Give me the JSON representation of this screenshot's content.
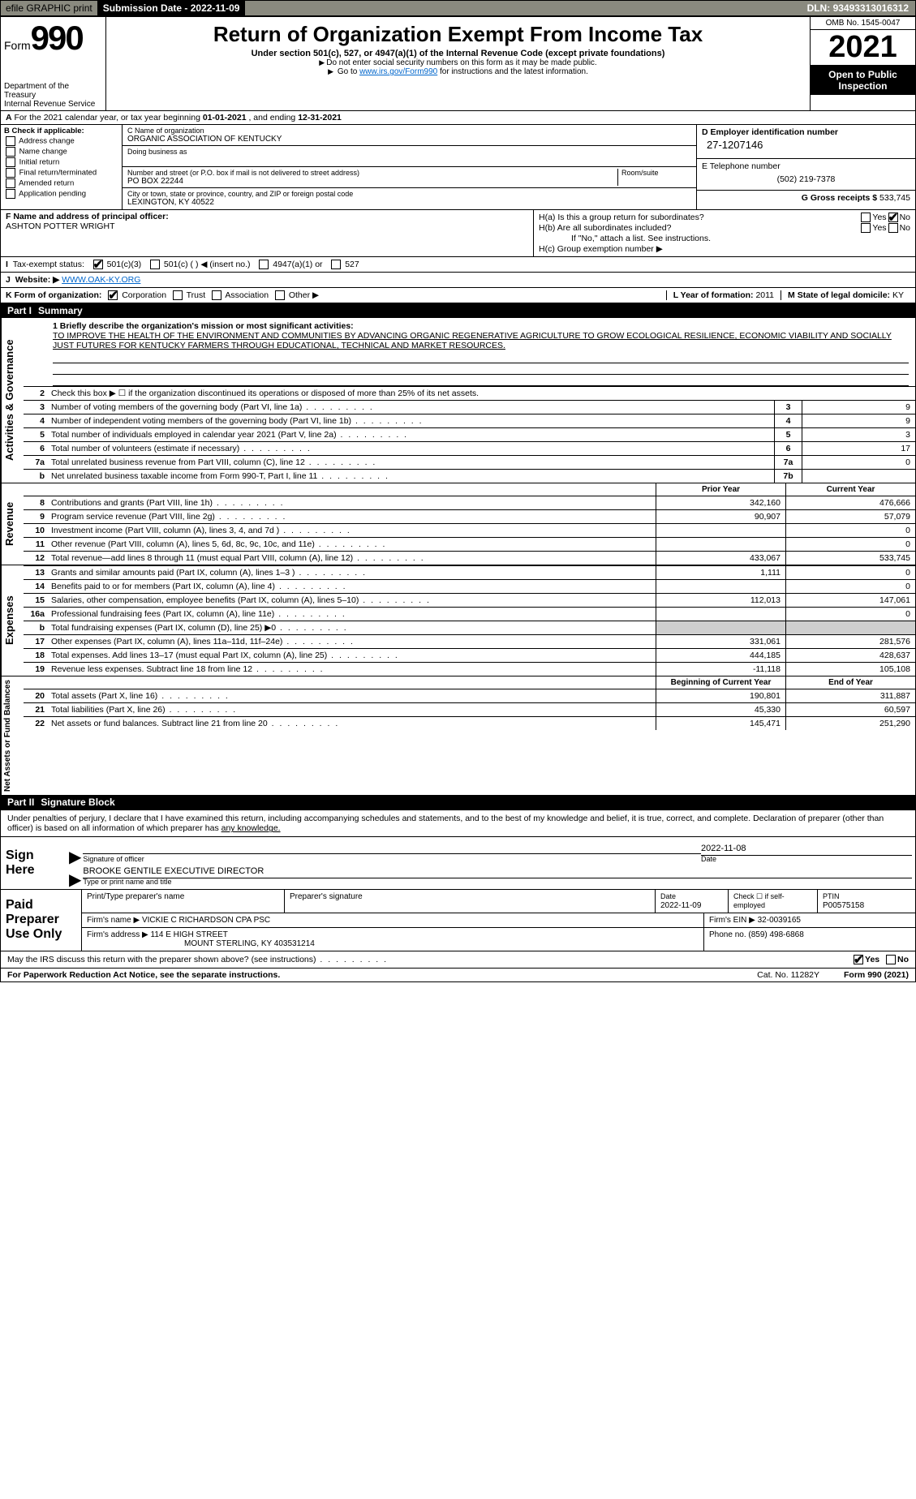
{
  "topbar": {
    "efile": "efile GRAPHIC print",
    "submission_label": "Submission Date - ",
    "submission_date": "2022-11-09",
    "dln_label": "DLN: ",
    "dln": "93493313016312"
  },
  "header": {
    "form_label": "Form",
    "form_num": "990",
    "dept": "Department of the Treasury",
    "irs": "Internal Revenue Service",
    "title": "Return of Organization Exempt From Income Tax",
    "subtitle": "Under section 501(c), 527, or 4947(a)(1) of the Internal Revenue Code (except private foundations)",
    "note1": "Do not enter social security numbers on this form as it may be made public.",
    "note2_pre": "Go to ",
    "note2_link": "www.irs.gov/Form990",
    "note2_post": " for instructions and the latest information.",
    "omb": "OMB No. 1545-0047",
    "year": "2021",
    "open": "Open to Public Inspection"
  },
  "sectionA": {
    "text_pre": "For the 2021 calendar year, or tax year beginning ",
    "begin": "01-01-2021",
    "mid": " , and ending ",
    "end": "12-31-2021"
  },
  "boxB": {
    "label": "B Check if applicable:",
    "items": [
      "Address change",
      "Name change",
      "Initial return",
      "Final return/terminated",
      "Amended return",
      "Application pending"
    ]
  },
  "boxC": {
    "name_label": "C Name of organization",
    "name": "ORGANIC ASSOCIATION OF KENTUCKY",
    "dba_label": "Doing business as",
    "dba": "",
    "street_label": "Number and street (or P.O. box if mail is not delivered to street address)",
    "room_label": "Room/suite",
    "street": "PO BOX 22244",
    "city_label": "City or town, state or province, country, and ZIP or foreign postal code",
    "city": "LEXINGTON, KY  40522"
  },
  "boxD": {
    "ein_label": "D Employer identification number",
    "ein": "27-1207146",
    "phone_label": "E Telephone number",
    "phone": "(502) 219-7378",
    "gross_label": "G Gross receipts $ ",
    "gross": "533,745"
  },
  "boxF": {
    "label": "F Name and address of principal officer:",
    "name": "ASHTON POTTER WRIGHT"
  },
  "boxH": {
    "a_label": "H(a)  Is this a group return for subordinates?",
    "b_label": "H(b)  Are all subordinates included?",
    "b_note": "If \"No,\" attach a list. See instructions.",
    "c_label": "H(c)  Group exemption number ▶",
    "yes": "Yes",
    "no": "No"
  },
  "lineI": {
    "label": "Tax-exempt status:",
    "opts": [
      "501(c)(3)",
      "501(c) (  ) ◀ (insert no.)",
      "4947(a)(1) or",
      "527"
    ]
  },
  "lineJ": {
    "label": "Website: ▶",
    "url": "WWW.OAK-KY.ORG"
  },
  "lineK": {
    "label": "K Form of organization:",
    "opts": [
      "Corporation",
      "Trust",
      "Association",
      "Other ▶"
    ],
    "year_label": "L Year of formation: ",
    "year": "2011",
    "state_label": "M State of legal domicile: ",
    "state": "KY"
  },
  "part1": {
    "title": "Part I",
    "name": "Summary",
    "side_gov": "Activities & Governance",
    "q1_label": "1  Briefly describe the organization's mission or most significant activities:",
    "q1_text": "TO IMPROVE THE HEALTH OF THE ENVIRONMENT AND COMMUNITIES BY ADVANCING ORGANIC REGENERATIVE AGRICULTURE TO GROW ECOLOGICAL RESILIENCE, ECONOMIC VIABILITY AND SOCIALLY JUST FUTURES FOR KENTUCKY FARMERS THROUGH EDUCATIONAL, TECHNICAL AND MARKET RESOURCES.",
    "q2": "Check this box ▶ ☐  if the organization discontinued its operations or disposed of more than 25% of its net assets.",
    "rows_gov": [
      {
        "n": "3",
        "t": "Number of voting members of the governing body (Part VI, line 1a)",
        "box": "3",
        "v": "9"
      },
      {
        "n": "4",
        "t": "Number of independent voting members of the governing body (Part VI, line 1b)",
        "box": "4",
        "v": "9"
      },
      {
        "n": "5",
        "t": "Total number of individuals employed in calendar year 2021 (Part V, line 2a)",
        "box": "5",
        "v": "3"
      },
      {
        "n": "6",
        "t": "Total number of volunteers (estimate if necessary)",
        "box": "6",
        "v": "17"
      },
      {
        "n": "7a",
        "t": "Total unrelated business revenue from Part VIII, column (C), line 12",
        "box": "7a",
        "v": "0"
      },
      {
        "n": "b",
        "t": "Net unrelated business taxable income from Form 990-T, Part I, line 11",
        "box": "7b",
        "v": ""
      }
    ],
    "col_prior": "Prior Year",
    "col_current": "Current Year",
    "side_rev": "Revenue",
    "rows_rev": [
      {
        "n": "8",
        "t": "Contributions and grants (Part VIII, line 1h)",
        "p": "342,160",
        "c": "476,666"
      },
      {
        "n": "9",
        "t": "Program service revenue (Part VIII, line 2g)",
        "p": "90,907",
        "c": "57,079"
      },
      {
        "n": "10",
        "t": "Investment income (Part VIII, column (A), lines 3, 4, and 7d )",
        "p": "",
        "c": "0"
      },
      {
        "n": "11",
        "t": "Other revenue (Part VIII, column (A), lines 5, 6d, 8c, 9c, 10c, and 11e)",
        "p": "",
        "c": "0"
      },
      {
        "n": "12",
        "t": "Total revenue—add lines 8 through 11 (must equal Part VIII, column (A), line 12)",
        "p": "433,067",
        "c": "533,745"
      }
    ],
    "side_exp": "Expenses",
    "rows_exp": [
      {
        "n": "13",
        "t": "Grants and similar amounts paid (Part IX, column (A), lines 1–3 )",
        "p": "1,111",
        "c": "0"
      },
      {
        "n": "14",
        "t": "Benefits paid to or for members (Part IX, column (A), line 4)",
        "p": "",
        "c": "0"
      },
      {
        "n": "15",
        "t": "Salaries, other compensation, employee benefits (Part IX, column (A), lines 5–10)",
        "p": "112,013",
        "c": "147,061"
      },
      {
        "n": "16a",
        "t": "Professional fundraising fees (Part IX, column (A), line 11e)",
        "p": "",
        "c": "0"
      },
      {
        "n": "b",
        "t": "Total fundraising expenses (Part IX, column (D), line 25) ▶0",
        "p": "shade",
        "c": "shade"
      },
      {
        "n": "17",
        "t": "Other expenses (Part IX, column (A), lines 11a–11d, 11f–24e)",
        "p": "331,061",
        "c": "281,576"
      },
      {
        "n": "18",
        "t": "Total expenses. Add lines 13–17 (must equal Part IX, column (A), line 25)",
        "p": "444,185",
        "c": "428,637"
      },
      {
        "n": "19",
        "t": "Revenue less expenses. Subtract line 18 from line 12",
        "p": "-11,118",
        "c": "105,108"
      }
    ],
    "col_begin": "Beginning of Current Year",
    "col_end": "End of Year",
    "side_net": "Net Assets or Fund Balances",
    "rows_net": [
      {
        "n": "20",
        "t": "Total assets (Part X, line 16)",
        "p": "190,801",
        "c": "311,887"
      },
      {
        "n": "21",
        "t": "Total liabilities (Part X, line 26)",
        "p": "45,330",
        "c": "60,597"
      },
      {
        "n": "22",
        "t": "Net assets or fund balances. Subtract line 21 from line 20",
        "p": "145,471",
        "c": "251,290"
      }
    ]
  },
  "part2": {
    "title": "Part II",
    "name": "Signature Block",
    "intro": "Under penalties of perjury, I declare that I have examined this return, including accompanying schedules and statements, and to the best of my knowledge and belief, it is true, correct, and complete. Declaration of preparer (other than officer) is based on all information of which preparer has ",
    "intro_u": "any knowledge.",
    "sign_here": "Sign Here",
    "sig_officer_lbl": "Signature of officer",
    "sig_date_lbl": "Date",
    "sig_date": "2022-11-08",
    "name_title": "BROOKE GENTILE  EXECUTIVE DIRECTOR",
    "name_title_lbl": "Type or print name and title"
  },
  "paid": {
    "label": "Paid Preparer Use Only",
    "r1": {
      "c1": "Print/Type preparer's name",
      "c2": "Preparer's signature",
      "c3_lbl": "Date",
      "c3": "2022-11-09",
      "c4_lbl": "Check ☐ if self-employed",
      "c5_lbl": "PTIN",
      "c5": "P00575158"
    },
    "r2": {
      "lbl": "Firm's name    ▶",
      "val": "VICKIE C RICHARDSON CPA PSC",
      "ein_lbl": "Firm's EIN ▶",
      "ein": "32-0039165"
    },
    "r3": {
      "lbl": "Firm's address ▶",
      "val1": "114 E HIGH STREET",
      "val2": "MOUNT STERLING, KY  403531214",
      "ph_lbl": "Phone no. ",
      "ph": "(859) 498-6868"
    }
  },
  "footer": {
    "q": "May the IRS discuss this return with the preparer shown above? (see instructions)",
    "yes": "Yes",
    "no": "No",
    "pra": "For Paperwork Reduction Act Notice, see the separate instructions.",
    "cat": "Cat. No. 11282Y",
    "form": "Form 990 (2021)"
  },
  "colors": {
    "topbar_bg": "#8a8a7f",
    "btn_bg": "#d5d5c8",
    "black": "#000000",
    "link": "#0066cc",
    "shade": "#cfcfcf"
  }
}
